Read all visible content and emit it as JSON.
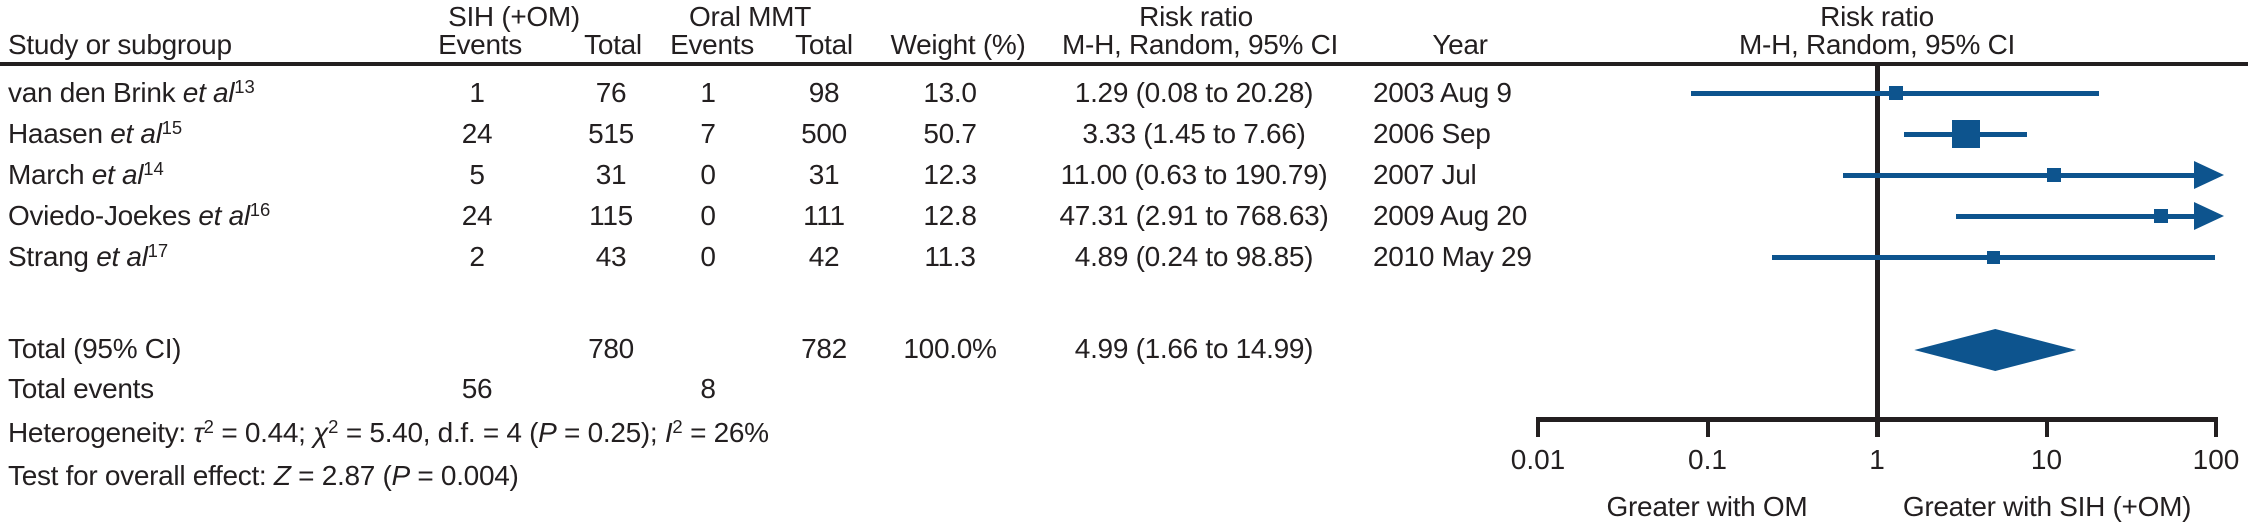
{
  "header": {
    "col_study": "Study or subgroup",
    "group_sih": {
      "title": "SIH (+OM)",
      "events": "Events",
      "total": "Total"
    },
    "group_mmt": {
      "title": "Oral MMT",
      "events": "Events",
      "total": "Total"
    },
    "col_weight": "Weight (%)",
    "rr_column": {
      "title": "Risk ratio",
      "subtitle": "M-H, Random, 95% CI"
    },
    "col_year": "Year",
    "plot_column": {
      "title": "Risk ratio",
      "subtitle": "M-H, Random, 95% CI"
    }
  },
  "rows": [
    {
      "name": "van den Brink ",
      "etal": "et al",
      "ref": "13",
      "e1": "1",
      "t1": "76",
      "e2": "1",
      "t2": "98",
      "weight": "13.0",
      "rr_text": "1.29 (0.08 to 20.28)",
      "year": "2003 Aug 9"
    },
    {
      "name": "Haasen ",
      "etal": "et al",
      "ref": "15",
      "e1": "24",
      "t1": "515",
      "e2": "7",
      "t2": "500",
      "weight": "50.7",
      "rr_text": "3.33 (1.45 to 7.66)",
      "year": "2006 Sep"
    },
    {
      "name": "March ",
      "etal": "et al",
      "ref": "14",
      "e1": "5",
      "t1": "31",
      "e2": "0",
      "t2": "31",
      "weight": "12.3",
      "rr_text": "11.00 (0.63 to 190.79)",
      "year": "2007 Jul"
    },
    {
      "name": "Oviedo-Joekes ",
      "etal": "et al",
      "ref": "16",
      "e1": "24",
      "t1": "115",
      "e2": "0",
      "t2": "111",
      "weight": "12.8",
      "rr_text": "47.31 (2.91 to 768.63)",
      "year": "2009 Aug 20"
    },
    {
      "name": "Strang ",
      "etal": "et al",
      "ref": "17",
      "e1": "2",
      "t1": "43",
      "e2": "0",
      "t2": "42",
      "weight": "11.3",
      "rr_text": "4.89 (0.24 to 98.85)",
      "year": "2010 May 29"
    }
  ],
  "totals": {
    "label": "Total (95% CI)",
    "t1": "780",
    "t2": "782",
    "weight": "100.0%",
    "rr_text": "4.99 (1.66 to 14.99)",
    "events_label": "Total events",
    "e1": "56",
    "e2": "8"
  },
  "footer": {
    "het": {
      "prefix": "Heterogeneity: ",
      "tau": "τ",
      "tau_sup": "2",
      "tau_val": " = 0.44; ",
      "chi": "χ",
      "chi_sup": "2",
      "chi_val": " = 5.40, d.f. = 4 (",
      "p1": "P",
      "p1_val": " = 0.25); ",
      "i": "I",
      "i_sup": "2",
      "i_val": " = 26%"
    },
    "test": {
      "prefix": "Test for overall effect: ",
      "z": "Z",
      "z_val": " = 2.87 (",
      "p2": "P",
      "p2_val": " = 0.004)"
    }
  },
  "axis": {
    "ticks": [
      "0.01",
      "0.1",
      "1",
      "10",
      "100"
    ],
    "label_left": "Greater with OM",
    "label_right": "Greater with SIH (+OM)"
  },
  "chart_data": {
    "type": "forest",
    "effect_measure": "Risk ratio, M-H, Random, 95% CI",
    "scale": "log10",
    "x_axis": {
      "min": 0.01,
      "max": 100,
      "ticks": [
        0.01,
        0.1,
        1,
        10,
        100
      ],
      "null_line": 1,
      "label_left": "Greater with OM",
      "label_right": "Greater with SIH (+OM)"
    },
    "studies": [
      {
        "label": "van den Brink et al 13",
        "events_sih": 1,
        "total_sih": 76,
        "events_mmt": 1,
        "total_mmt": 98,
        "weight_pct": 13.0,
        "rr": 1.29,
        "ci_low": 0.08,
        "ci_high": 20.28,
        "year": "2003 Aug 9"
      },
      {
        "label": "Haasen et al 15",
        "events_sih": 24,
        "total_sih": 515,
        "events_mmt": 7,
        "total_mmt": 500,
        "weight_pct": 50.7,
        "rr": 3.33,
        "ci_low": 1.45,
        "ci_high": 7.66,
        "year": "2006 Sep"
      },
      {
        "label": "March et al 14",
        "events_sih": 5,
        "total_sih": 31,
        "events_mmt": 0,
        "total_mmt": 31,
        "weight_pct": 12.3,
        "rr": 11.0,
        "ci_low": 0.63,
        "ci_high": 190.79,
        "year": "2007 Jul"
      },
      {
        "label": "Oviedo-Joekes et al 16",
        "events_sih": 24,
        "total_sih": 115,
        "events_mmt": 0,
        "total_mmt": 111,
        "weight_pct": 12.8,
        "rr": 47.31,
        "ci_low": 2.91,
        "ci_high": 768.63,
        "year": "2009 Aug 20"
      },
      {
        "label": "Strang et al 17",
        "events_sih": 2,
        "total_sih": 43,
        "events_mmt": 0,
        "total_mmt": 42,
        "weight_pct": 11.3,
        "rr": 4.89,
        "ci_low": 0.24,
        "ci_high": 98.85,
        "year": "2010 May 29"
      }
    ],
    "total": {
      "label": "Total (95% CI)",
      "total_sih": 780,
      "total_mmt": 782,
      "total_events_sih": 56,
      "total_events_mmt": 8,
      "weight_pct": 100.0,
      "rr": 4.99,
      "ci_low": 1.66,
      "ci_high": 14.99
    },
    "heterogeneity": {
      "tau2": 0.44,
      "chi2": 5.4,
      "df": 4,
      "p": 0.25,
      "i2_pct": 26
    },
    "overall_effect": {
      "z": 2.87,
      "p": 0.004
    },
    "colors": {
      "marker": "#0d548e",
      "axis": "#231f20",
      "text": "#231f20"
    }
  }
}
